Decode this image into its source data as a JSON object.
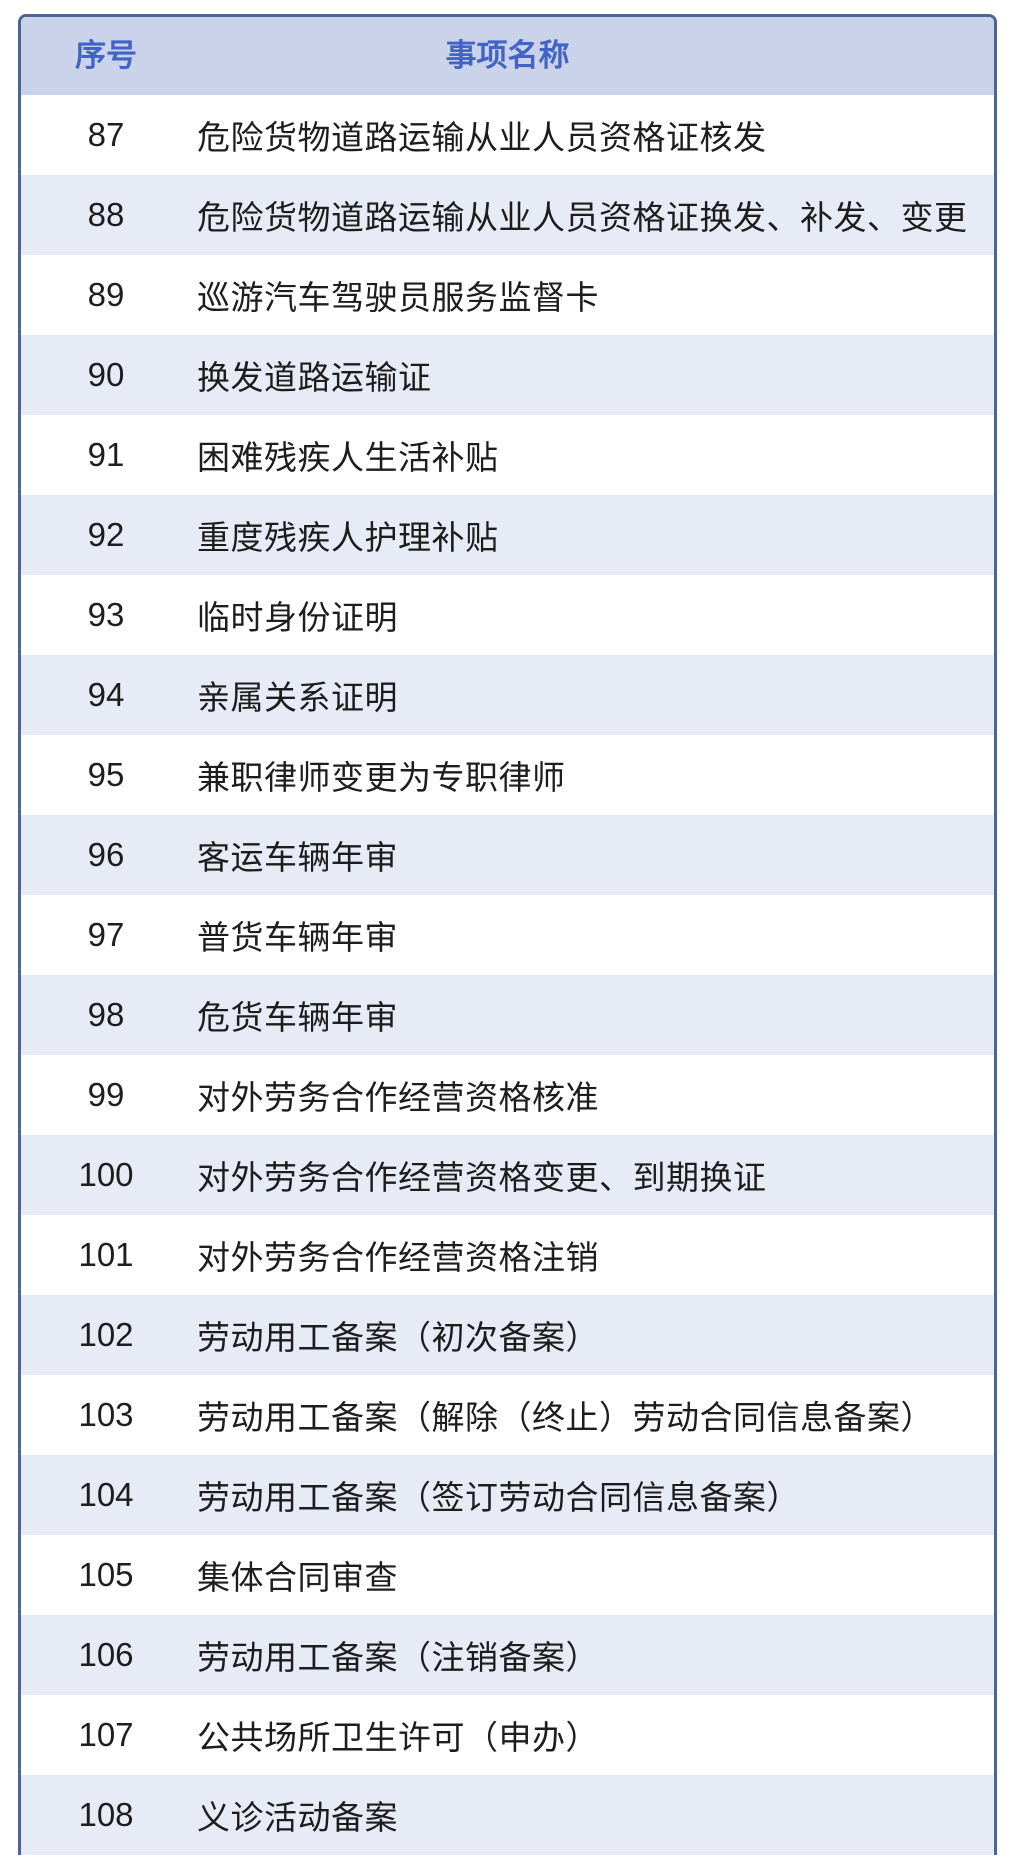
{
  "table": {
    "header": {
      "seq_label": "序号",
      "name_label": "事项名称"
    },
    "rows": [
      {
        "seq": "87",
        "name": "危险货物道路运输从业人员资格证核发"
      },
      {
        "seq": "88",
        "name": "危险货物道路运输从业人员资格证换发、补发、变更"
      },
      {
        "seq": "89",
        "name": "巡游汽车驾驶员服务监督卡"
      },
      {
        "seq": "90",
        "name": "换发道路运输证"
      },
      {
        "seq": "91",
        "name": "困难残疾人生活补贴"
      },
      {
        "seq": "92",
        "name": "重度残疾人护理补贴"
      },
      {
        "seq": "93",
        "name": "临时身份证明"
      },
      {
        "seq": "94",
        "name": "亲属关系证明"
      },
      {
        "seq": "95",
        "name": "兼职律师变更为专职律师"
      },
      {
        "seq": "96",
        "name": "客运车辆年审"
      },
      {
        "seq": "97",
        "name": "普货车辆年审"
      },
      {
        "seq": "98",
        "name": "危货车辆年审"
      },
      {
        "seq": "99",
        "name": "对外劳务合作经营资格核准"
      },
      {
        "seq": "100",
        "name": "对外劳务合作经营资格变更、到期换证"
      },
      {
        "seq": "101",
        "name": "对外劳务合作经营资格注销"
      },
      {
        "seq": "102",
        "name": "劳动用工备案（初次备案）"
      },
      {
        "seq": "103",
        "name": "劳动用工备案（解除（终止）劳动合同信息备案）"
      },
      {
        "seq": "104",
        "name": "劳动用工备案（签订劳动合同信息备案）"
      },
      {
        "seq": "105",
        "name": "集体合同审查"
      },
      {
        "seq": "106",
        "name": "劳动用工备案（注销备案）"
      },
      {
        "seq": "107",
        "name": "公共场所卫生许可（申办）"
      },
      {
        "seq": "108",
        "name": "义诊活动备案"
      }
    ]
  },
  "colors": {
    "header_bg": "#cbd3ea",
    "header_text": "#4164c6",
    "row_bg": "#ffffff",
    "row_alt_bg": "#e7ebf6",
    "text": "#1d1d1d",
    "border": "#4d6590"
  }
}
